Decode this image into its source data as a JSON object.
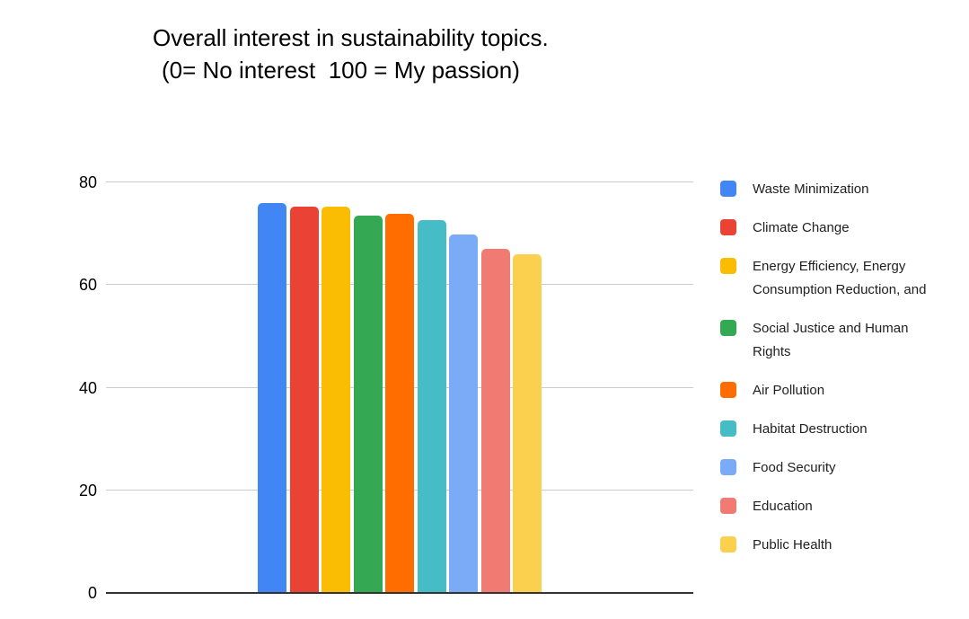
{
  "title": {
    "line1": "Overall interest in sustainability topics.",
    "line2": "(0= No interest  100 = My passion)"
  },
  "chart_data": {
    "type": "bar",
    "title": "Overall interest in sustainability topics. (0= No interest  100 = My passion)",
    "categories": [
      "Waste Minimization",
      "Climate Change",
      "Energy Efficiency, Energy Consumption Reduction, and",
      "Social Justice and Human Rights",
      "Air Pollution",
      "Habitat Destruction",
      "Food Security",
      "Education",
      "Public Health"
    ],
    "values": [
      75.9,
      75.2,
      75.2,
      73.6,
      73.8,
      72.7,
      69.8,
      67.1,
      66.0
    ],
    "colors": [
      "#4285F4",
      "#EA4335",
      "#FBBC04",
      "#34A853",
      "#FF6D01",
      "#46BDC6",
      "#7BAAF7",
      "#F07B72",
      "#FCD04F"
    ],
    "xlabel": "",
    "ylabel": "",
    "ylim": [
      0,
      80
    ],
    "yticks": [
      0,
      20,
      40,
      60,
      80
    ],
    "grid": true,
    "legend_position": "right"
  },
  "colors": {
    "gridline": "#cccccc",
    "baseline": "#333333",
    "title_text": "#000000",
    "tick_text": "#000000",
    "legend_text": "#212121",
    "background": "#ffffff"
  }
}
